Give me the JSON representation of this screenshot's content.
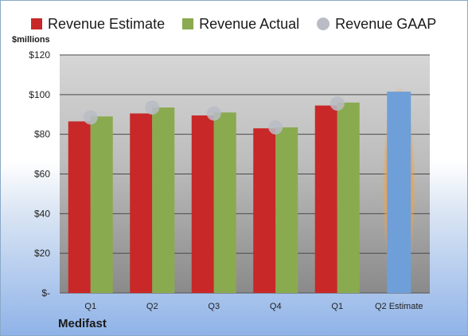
{
  "chart_data": {
    "type": "bar",
    "ylabel": "$millions",
    "ylim": [
      0,
      120
    ],
    "yticks": [
      {
        "value": 0,
        "label": "$-"
      },
      {
        "value": 20,
        "label": "$20"
      },
      {
        "value": 40,
        "label": "$40"
      },
      {
        "value": 60,
        "label": "$60"
      },
      {
        "value": 80,
        "label": "$80"
      },
      {
        "value": 100,
        "label": "$100"
      },
      {
        "value": 120,
        "label": "$120"
      }
    ],
    "categories": [
      "Q1",
      "Q2",
      "Q3",
      "Q4",
      "Q1",
      "Q2 Estimate"
    ],
    "series": [
      {
        "name": "Revenue Estimate",
        "kind": "bar",
        "color": "#c82828",
        "values": [
          86.5,
          90.5,
          89.5,
          83,
          94.5,
          null
        ]
      },
      {
        "name": "Revenue Actual",
        "kind": "bar",
        "color": "#8aaa50",
        "values": [
          89,
          93.5,
          91,
          83.5,
          96,
          null
        ]
      },
      {
        "name": "Revenue GAAP",
        "kind": "marker",
        "color": "#b9bcc4",
        "values": [
          88.5,
          93.5,
          90.5,
          83.5,
          95.5,
          null
        ]
      },
      {
        "name": "Q2 Estimate",
        "kind": "bar",
        "color": "#6f9fd8",
        "highlight": "#f5a040",
        "values": [
          null,
          null,
          null,
          null,
          null,
          101.5
        ]
      }
    ],
    "legend_position": "top",
    "grid": true
  },
  "footer": {
    "company": "Medifast"
  }
}
